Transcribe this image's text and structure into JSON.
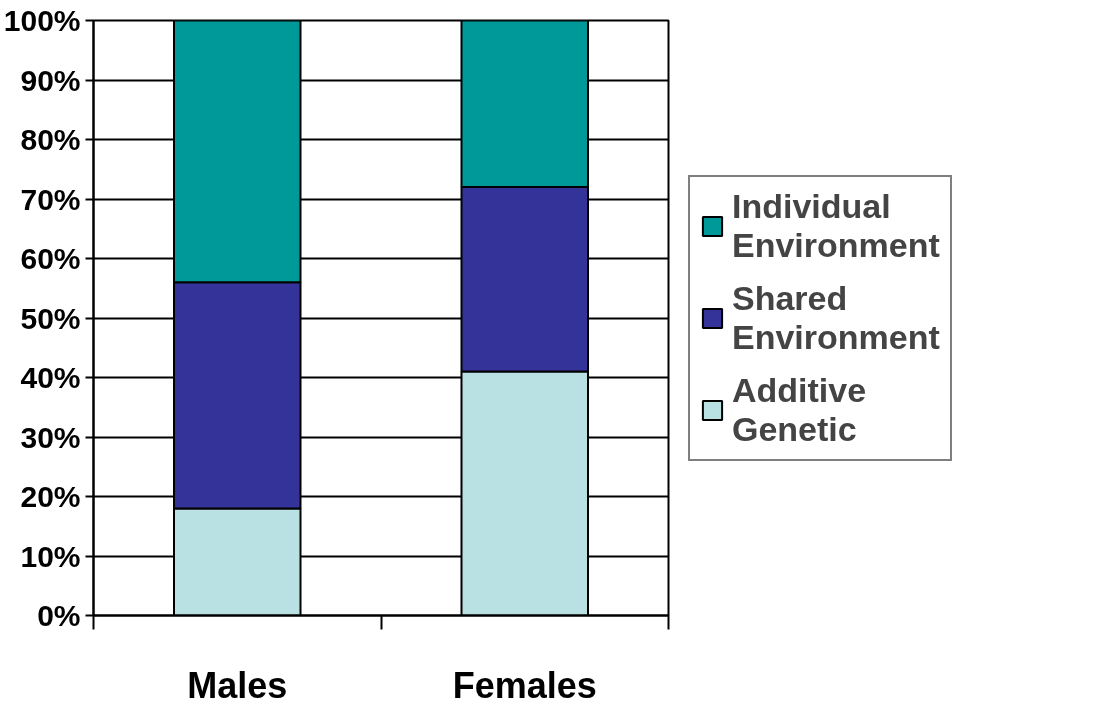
{
  "chart_data": {
    "type": "bar",
    "stacked": true,
    "categories": [
      "Males",
      "Females"
    ],
    "series": [
      {
        "name": "Additive Genetic",
        "color": "#b9e0e3",
        "values": [
          18,
          41
        ]
      },
      {
        "name": "Shared Environment",
        "color": "#333399",
        "values": [
          38,
          31
        ]
      },
      {
        "name": "Individual Environment",
        "color": "#009999",
        "values": [
          44,
          28
        ]
      }
    ],
    "ylim": [
      0,
      100
    ],
    "yticks": [
      {
        "value": 0,
        "label": "0%"
      },
      {
        "value": 10,
        "label": "10%"
      },
      {
        "value": 20,
        "label": "20%"
      },
      {
        "value": 30,
        "label": "30%"
      },
      {
        "value": 40,
        "label": "40%"
      },
      {
        "value": 50,
        "label": "50%"
      },
      {
        "value": 60,
        "label": "60%"
      },
      {
        "value": 70,
        "label": "70%"
      },
      {
        "value": 80,
        "label": "80%"
      },
      {
        "value": 90,
        "label": "90%"
      },
      {
        "value": 100,
        "label": "100%"
      }
    ],
    "grid": "y",
    "legend": "right"
  }
}
